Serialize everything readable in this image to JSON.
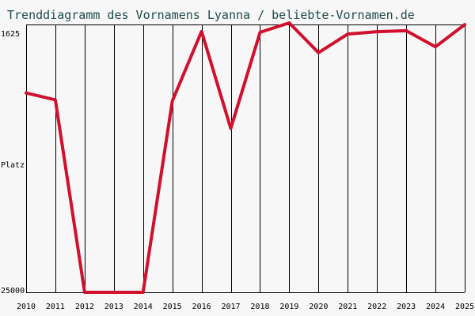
{
  "chart_data": {
    "type": "line",
    "title": "Trenddiagramm des Vornamens Lyanna / beliebte-Vornamen.de",
    "ylabel": "Platz",
    "x": [
      2010,
      2011,
      2012,
      2013,
      2014,
      2015,
      2016,
      2017,
      2018,
      2019,
      2020,
      2021,
      2022,
      2023,
      2024,
      2025
    ],
    "series": [
      {
        "values": [
          7600,
          8200,
          25000,
          25000,
          25000,
          8300,
          2230,
          10700,
          2310,
          1490,
          4090,
          2460,
          2250,
          2170,
          3570,
          1630
        ]
      }
    ],
    "ylim": [
      25000,
      1625
    ],
    "yticks": [
      "1625",
      "25000"
    ],
    "color": "#d0102c",
    "grid": "vertical"
  }
}
